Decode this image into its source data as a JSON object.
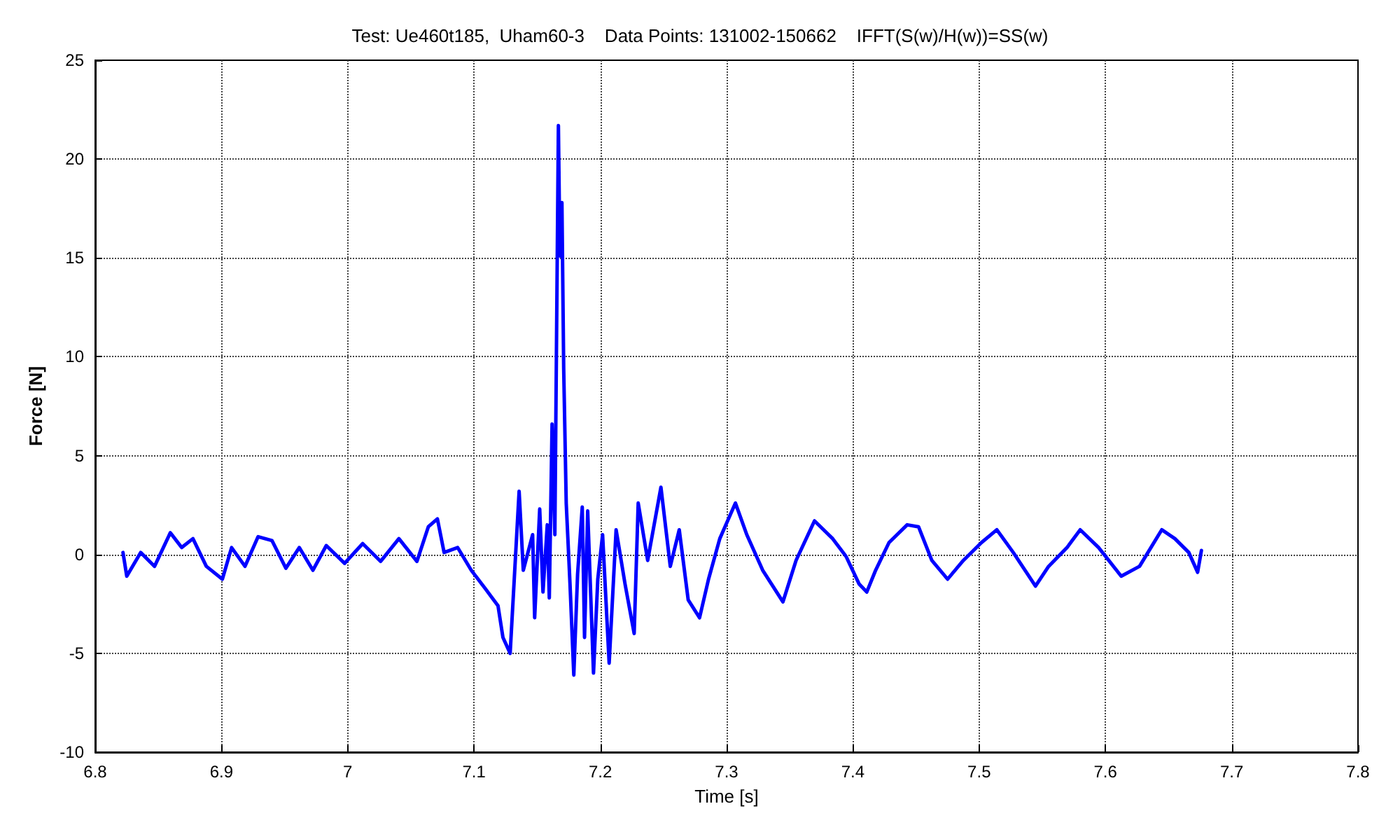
{
  "chart_data": {
    "type": "line",
    "title": "Test: Ue460t185,  Uham60-3    Data Points: 131002-150662    IFFT(S(w)/H(w))=SS(w)",
    "xlabel": "Time [s]",
    "ylabel": "Force [N]",
    "x": [
      6.822,
      6.825,
      6.836,
      6.847,
      6.8595,
      6.8685,
      6.8774,
      6.888,
      6.9007,
      6.908,
      6.9186,
      6.929,
      6.94,
      6.951,
      6.9616,
      6.9724,
      6.983,
      6.9975,
      7.0118,
      7.026,
      7.0405,
      7.0548,
      7.0638,
      7.071,
      7.0763,
      7.087,
      7.0978,
      7.1086,
      7.119,
      7.1229,
      7.1286,
      7.1357,
      7.139,
      7.1464,
      7.148,
      7.152,
      7.1546,
      7.158,
      7.1596,
      7.1618,
      7.164,
      7.1668,
      7.168,
      7.1696,
      7.171,
      7.173,
      7.176,
      7.179,
      7.182,
      7.1857,
      7.1875,
      7.19,
      7.1946,
      7.198,
      7.2018,
      7.207,
      7.2125,
      7.2196,
      7.2268,
      7.23,
      7.2375,
      7.248,
      7.2554,
      7.2625,
      7.2696,
      7.2786,
      7.2857,
      7.2946,
      7.307,
      7.316,
      7.3286,
      7.3446,
      7.355,
      7.3696,
      7.384,
      7.3946,
      7.405,
      7.411,
      7.418,
      7.4286,
      7.443,
      7.452,
      7.4625,
      7.475,
      7.4875,
      7.5018,
      7.514,
      7.527,
      7.5446,
      7.555,
      7.5696,
      7.58,
      7.5946,
      7.6125,
      7.627,
      7.6446,
      7.655,
      7.666,
      7.673,
      7.676
    ],
    "series": [
      {
        "color": "#0000ff",
        "values": [
          0.1,
          -1.1,
          0.1,
          -0.6,
          1.1,
          0.35,
          0.8,
          -0.6,
          -1.25,
          0.35,
          -0.6,
          0.9,
          0.7,
          -0.7,
          0.35,
          -0.8,
          0.45,
          -0.45,
          0.55,
          -0.35,
          0.8,
          -0.35,
          1.4,
          1.8,
          0.1,
          0.35,
          -0.8,
          -1.7,
          -2.6,
          -4.2,
          -5,
          3.2,
          -0.8,
          1,
          -3.2,
          2.3,
          -1.9,
          1.5,
          -2.2,
          6.6,
          1,
          21.7,
          15.1,
          17.8,
          9.4,
          2.6,
          -1.5,
          -6.1,
          -1,
          2.4,
          -4.2,
          2.2,
          -6,
          -1.25,
          1,
          -5.5,
          1.25,
          -1.5,
          -4,
          2.6,
          -0.3,
          3.4,
          -0.6,
          1.25,
          -2.3,
          -3.2,
          -1.25,
          0.8,
          2.6,
          1,
          -0.8,
          -2.4,
          -0.3,
          1.7,
          0.8,
          -0.1,
          -1.5,
          -1.9,
          -0.8,
          0.6,
          1.5,
          1.4,
          -0.3,
          -1.25,
          -0.3,
          0.6,
          1.25,
          0.1,
          -1.6,
          -0.6,
          0.35,
          1.25,
          0.35,
          -1.1,
          -0.6,
          1.25,
          0.8,
          0.1,
          -0.9,
          0.2
        ]
      }
    ],
    "xlim": [
      6.8,
      7.8
    ],
    "xticks": [
      6.8,
      6.9,
      7,
      7.1,
      7.2,
      7.3,
      7.4,
      7.5,
      7.6,
      7.7,
      7.8
    ],
    "ylim": [
      -10,
      25
    ],
    "yticks": [
      -10,
      -5,
      0,
      5,
      10,
      15,
      20,
      25
    ],
    "grid": true,
    "line_style": "solid",
    "marker": "none"
  }
}
